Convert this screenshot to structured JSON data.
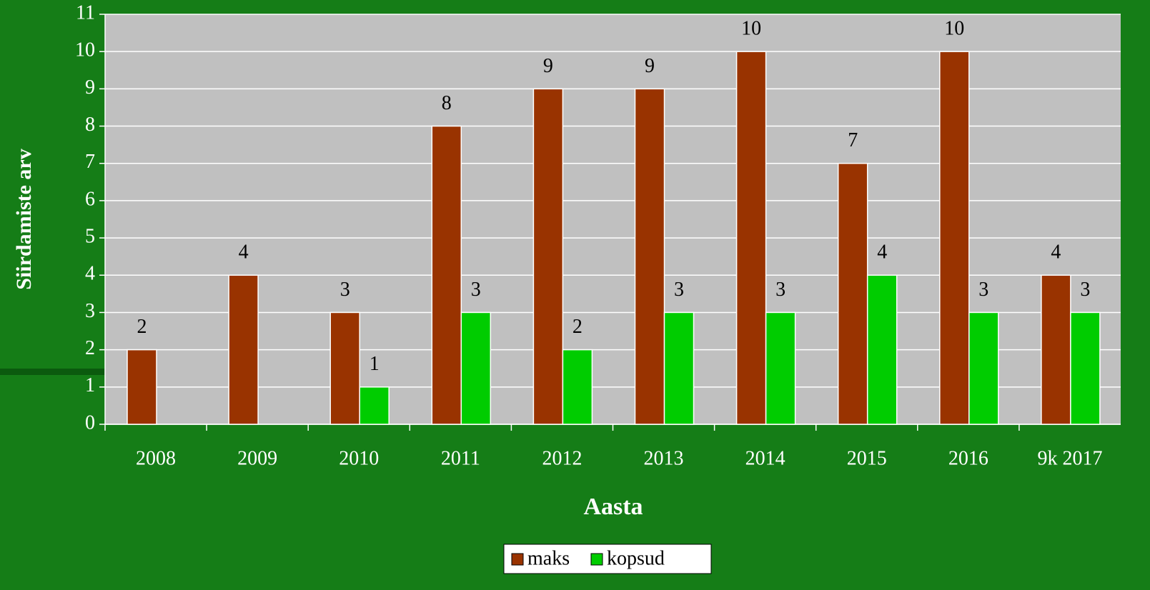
{
  "chart_data": {
    "type": "bar",
    "categories": [
      "2008",
      "2009",
      "2010",
      "2011",
      "2012",
      "2013",
      "2014",
      "2015",
      "2016",
      "9k 2017"
    ],
    "series": [
      {
        "name": "maks",
        "color": "#993300",
        "values": [
          2,
          4,
          3,
          8,
          9,
          9,
          10,
          7,
          10,
          4
        ]
      },
      {
        "name": "kopsud",
        "color": "#00cc00",
        "values": [
          null,
          null,
          1,
          3,
          2,
          3,
          3,
          4,
          3,
          3
        ]
      }
    ],
    "xlabel": "Aasta",
    "ylabel": "Siirdamiste arv",
    "ylim": [
      0,
      11
    ],
    "yticks": [
      0,
      1,
      2,
      3,
      4,
      5,
      6,
      7,
      8,
      9,
      10,
      11
    ],
    "grid": true
  }
}
